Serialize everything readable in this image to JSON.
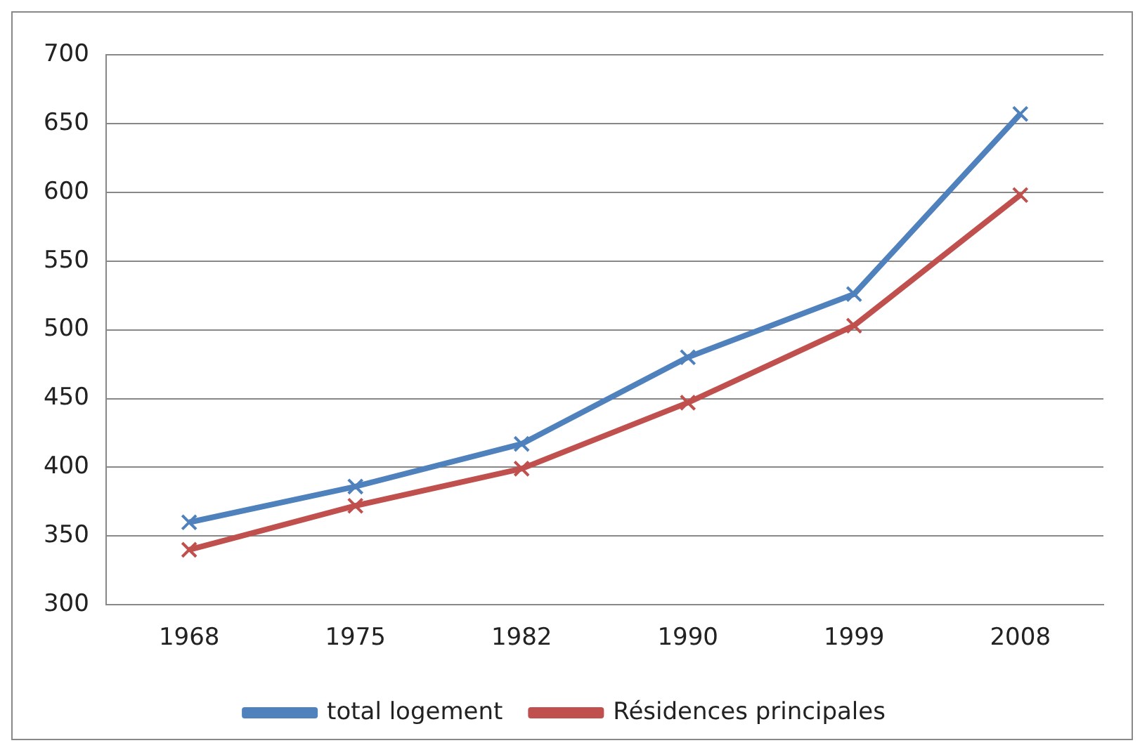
{
  "chart_data": {
    "type": "line",
    "categories": [
      "1968",
      "1975",
      "1982",
      "1990",
      "1999",
      "2008"
    ],
    "series": [
      {
        "name": "total logement",
        "color": "#4f81bd",
        "values": [
          360,
          386,
          417,
          480,
          526,
          657
        ]
      },
      {
        "name": "Résidences principales",
        "color": "#c0504d",
        "values": [
          340,
          372,
          399,
          447,
          503,
          598
        ]
      }
    ],
    "ylim": [
      300,
      700
    ],
    "yticks": [
      300,
      350,
      400,
      450,
      500,
      550,
      600,
      650,
      700
    ],
    "grid": "y",
    "legend": "bottom",
    "marker": "cross"
  }
}
